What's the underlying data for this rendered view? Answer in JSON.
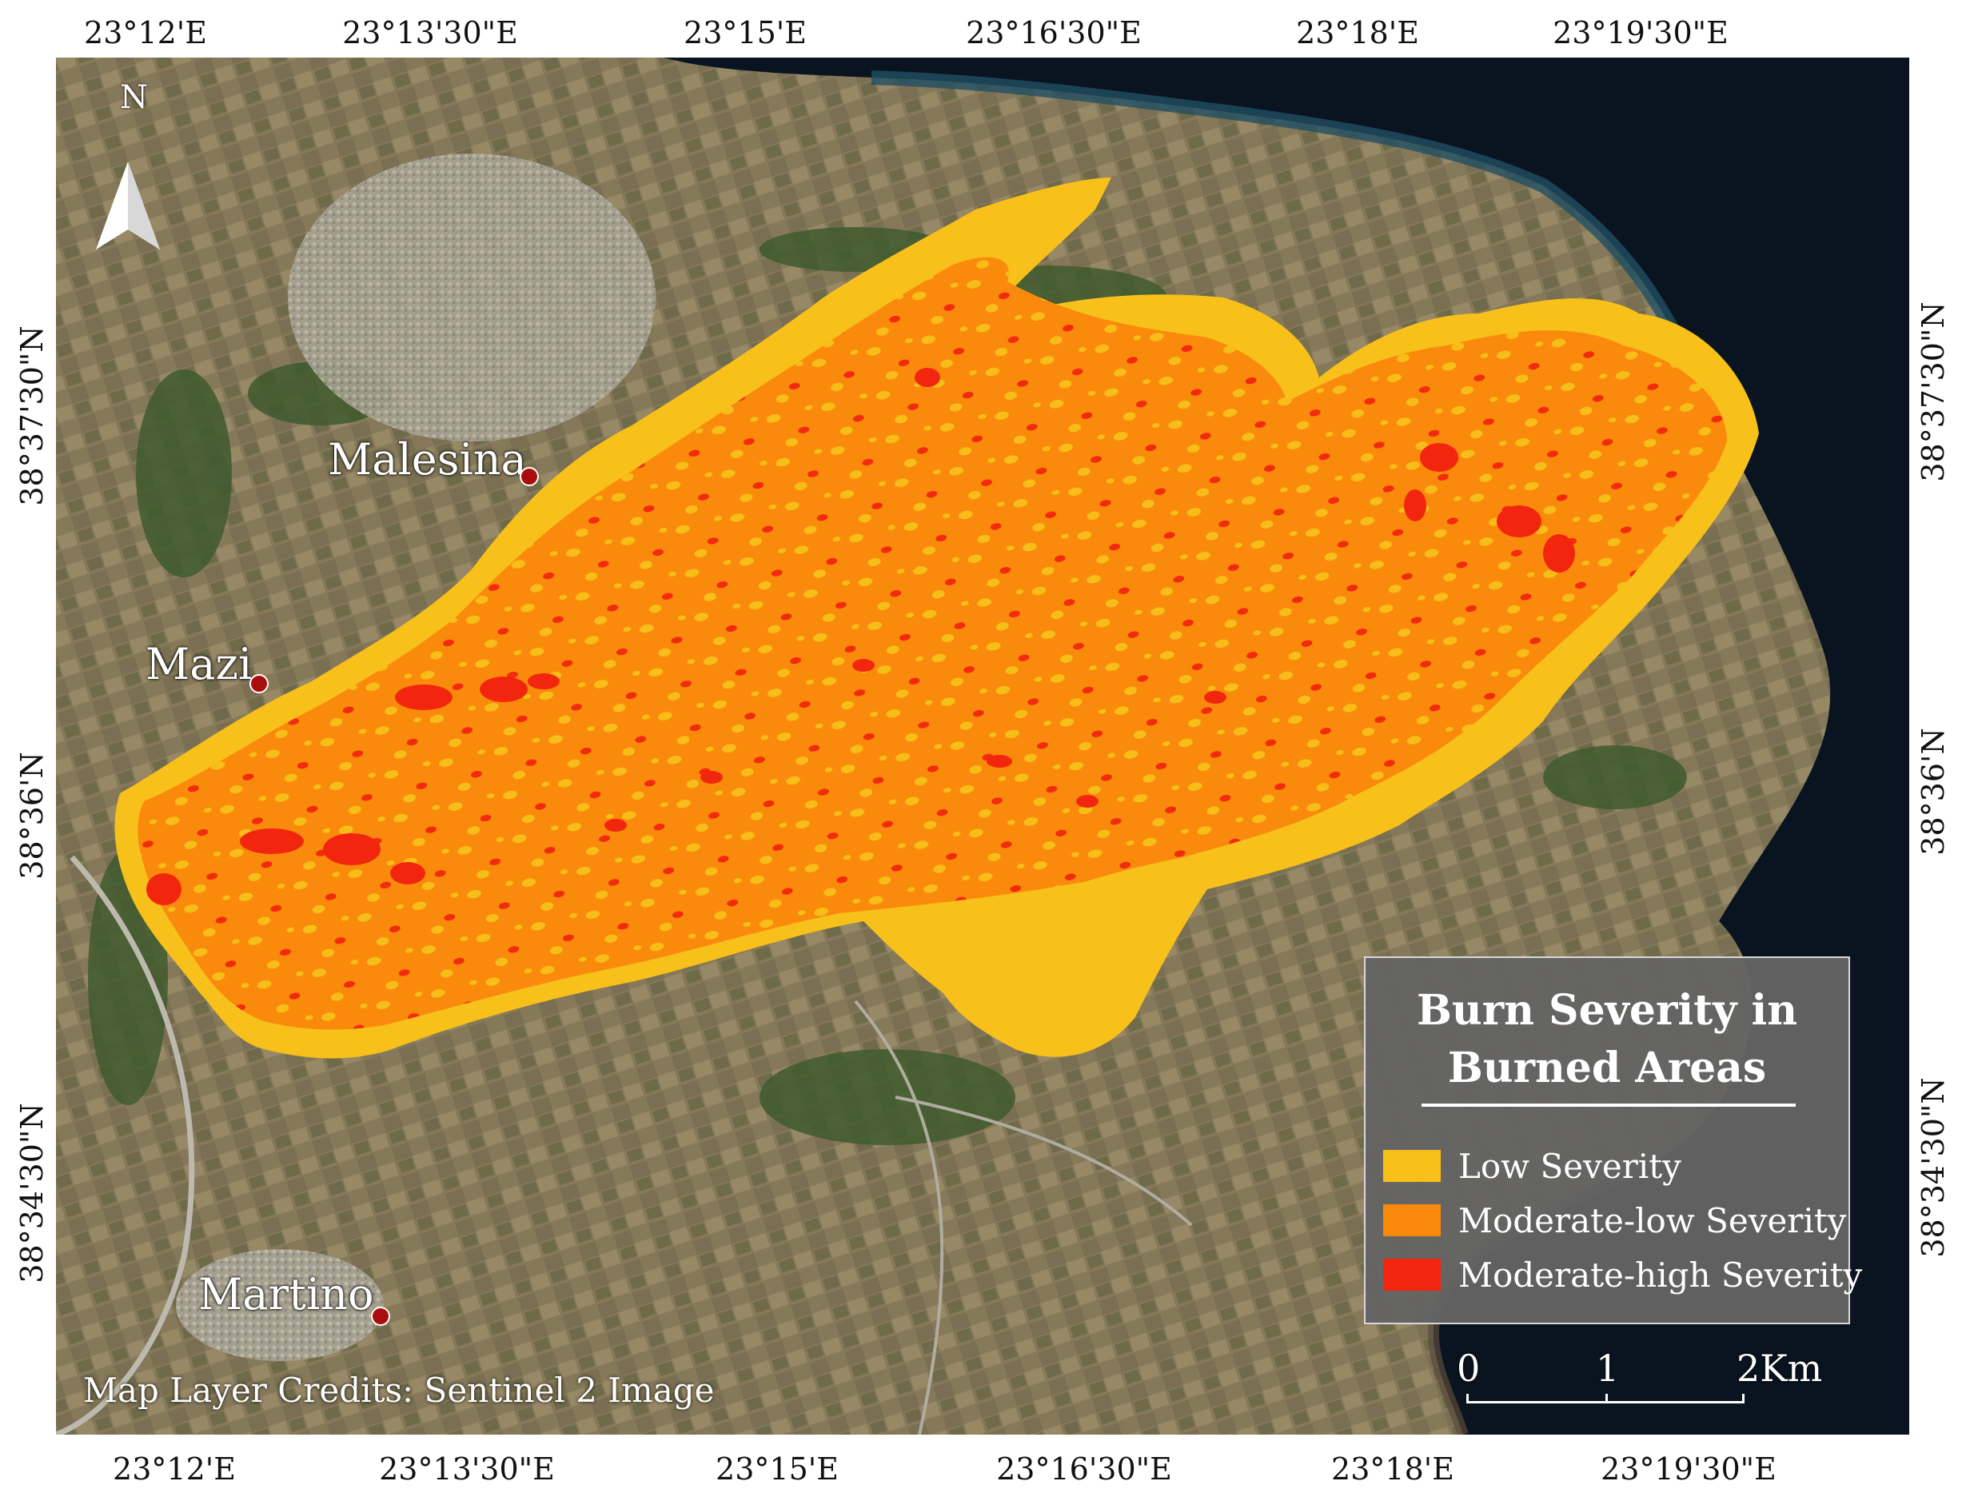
{
  "axes": {
    "top": [
      "23°12'E",
      "23°13'30\"E",
      "23°15'E",
      "23°16'30\"E",
      "23°18'E",
      "23°19'30\"E"
    ],
    "bottom": [
      "23°12'E",
      "23°13'30\"E",
      "23°15'E",
      "23°16'30\"E",
      "23°18'E",
      "23°19'30\"E"
    ],
    "left": [
      "38°37'30\"N",
      "38°36'N",
      "38°34'30\"N"
    ],
    "right": [
      "38°37'30\"N",
      "38°36'N",
      "38°34'30\"N"
    ]
  },
  "north_arrow": {
    "label": "N"
  },
  "places": {
    "malesina": "Malesina",
    "mazi": "Mazi",
    "martino": "Martino"
  },
  "legend": {
    "title_line1": "Burn Severity in",
    "title_line2": "Burned Areas",
    "items": [
      {
        "label": "Low Severity",
        "color": "#f7c01a"
      },
      {
        "label": "Moderate-low Severity",
        "color": "#f98a0c"
      },
      {
        "label": "Moderate-high Severity",
        "color": "#f2260f"
      }
    ]
  },
  "scale_bar": {
    "labels": [
      "0",
      "1",
      "2Km"
    ]
  },
  "credits": "Map Layer Credits: Sentinel 2 Image",
  "colors": {
    "sea": "#0a1420",
    "land": "#8a7e5e",
    "vegetation": "#3f5a2e",
    "settlement": "#b5b0a2",
    "low": "#f7c01a",
    "moderate_low": "#f98a0c",
    "moderate_high": "#f2260f"
  }
}
